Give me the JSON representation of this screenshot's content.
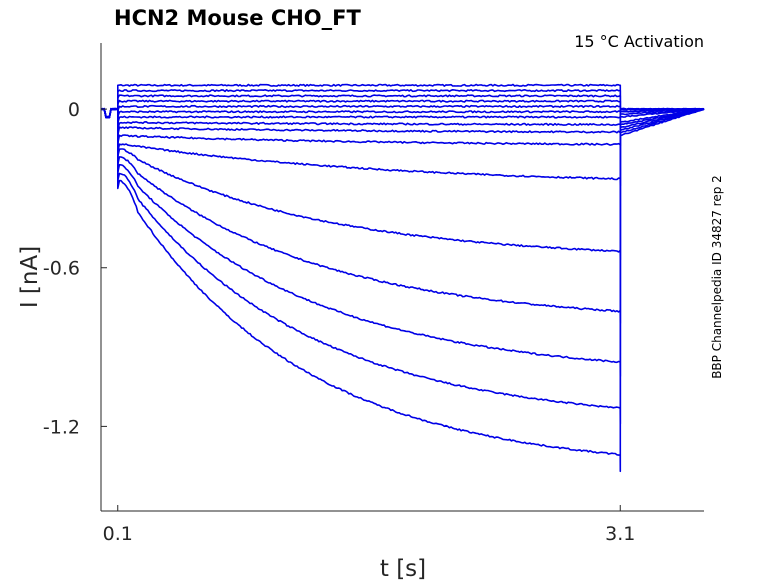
{
  "chart_data": {
    "type": "line",
    "title": "HCN2  Mouse  CHO_FT",
    "annotation": "15 °C  Activation",
    "side_label": "BBP Channelpedia ID 34827 rep 2",
    "xlabel": "t [s]",
    "ylabel": "I [nA]",
    "xlim": [
      0.0,
      3.6
    ],
    "ylim": [
      -1.52,
      0.25
    ],
    "xticks": [
      {
        "value": 0.1,
        "label": "0.1"
      },
      {
        "value": 3.1,
        "label": "3.1"
      }
    ],
    "yticks": [
      {
        "value": 0,
        "label": "0"
      },
      {
        "value": -0.6,
        "label": "-0.6"
      },
      {
        "value": -1.2,
        "label": "-1.2"
      }
    ],
    "grid": false,
    "color": "#0000e6",
    "step_start": 0.1,
    "step_end": 3.1,
    "series": [
      {
        "initial": 0.09,
        "final": 0.09,
        "tail": 0.0
      },
      {
        "initial": 0.07,
        "final": 0.07,
        "tail": 0.0
      },
      {
        "initial": 0.05,
        "final": 0.05,
        "tail": 0.0
      },
      {
        "initial": 0.03,
        "final": 0.03,
        "tail": 0.0
      },
      {
        "initial": 0.01,
        "final": 0.01,
        "tail": 0.0
      },
      {
        "initial": -0.01,
        "final": -0.01,
        "tail": 0.0
      },
      {
        "initial": -0.03,
        "final": -0.03,
        "tail": -0.01
      },
      {
        "initial": -0.05,
        "final": -0.06,
        "tail": -0.01
      },
      {
        "initial": -0.07,
        "final": -0.09,
        "tail": -0.02
      },
      {
        "initial": -0.1,
        "final": -0.14,
        "tail": -0.03
      },
      {
        "initial": -0.13,
        "final": -0.29,
        "tail": -0.05
      },
      {
        "initial": -0.15,
        "final": -0.57,
        "tail": -0.06
      },
      {
        "initial": -0.18,
        "final": -0.81,
        "tail": -0.07
      },
      {
        "initial": -0.21,
        "final": -1.01,
        "tail": -0.08
      },
      {
        "initial": -0.24,
        "final": -1.19,
        "tail": -0.09
      },
      {
        "initial": -0.27,
        "final": -1.37,
        "tail": -0.1
      }
    ]
  }
}
